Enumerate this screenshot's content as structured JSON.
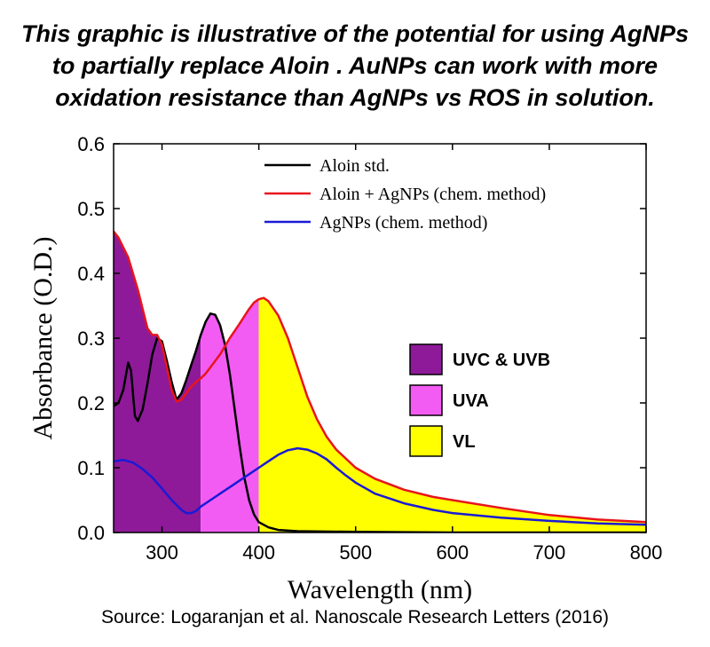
{
  "header": {
    "lines": [
      "This graphic is illustrative of the potential for using  AgNPs",
      "to partially replace Aloin . AuNPs can work with more",
      "oxidation resistance than AgNPs vs ROS in solution."
    ]
  },
  "source": "Source: Logaranjan et al. Nanoscale Research Letters (2016)",
  "chart_data": {
    "type": "line",
    "xlabel": "Wavelength (nm)",
    "ylabel": "Absorbance (O.D.)",
    "xlim": [
      250,
      800
    ],
    "ylim": [
      0.0,
      0.6
    ],
    "xticks": [
      300,
      400,
      500,
      600,
      700,
      800
    ],
    "yticks": [
      0.0,
      0.1,
      0.2,
      0.3,
      0.4,
      0.5,
      0.6
    ],
    "ytick_labels": [
      "0.0",
      "0.1",
      "0.2",
      "0.3",
      "0.4",
      "0.5",
      "0.6"
    ],
    "grid": false,
    "legend_position": "top-right",
    "series": [
      {
        "name": "Aloin std.",
        "color": "#000000",
        "points": [
          [
            250,
            0.195
          ],
          [
            255,
            0.2
          ],
          [
            260,
            0.22
          ],
          [
            265,
            0.262
          ],
          [
            268,
            0.25
          ],
          [
            272,
            0.18
          ],
          [
            275,
            0.172
          ],
          [
            280,
            0.19
          ],
          [
            285,
            0.23
          ],
          [
            290,
            0.275
          ],
          [
            295,
            0.3
          ],
          [
            300,
            0.295
          ],
          [
            305,
            0.265
          ],
          [
            310,
            0.232
          ],
          [
            315,
            0.205
          ],
          [
            320,
            0.215
          ],
          [
            325,
            0.235
          ],
          [
            330,
            0.258
          ],
          [
            335,
            0.28
          ],
          [
            340,
            0.305
          ],
          [
            345,
            0.325
          ],
          [
            350,
            0.338
          ],
          [
            355,
            0.336
          ],
          [
            360,
            0.32
          ],
          [
            365,
            0.29
          ],
          [
            370,
            0.245
          ],
          [
            375,
            0.19
          ],
          [
            380,
            0.135
          ],
          [
            385,
            0.085
          ],
          [
            390,
            0.05
          ],
          [
            395,
            0.028
          ],
          [
            400,
            0.016
          ],
          [
            410,
            0.008
          ],
          [
            420,
            0.004
          ],
          [
            440,
            0.002
          ],
          [
            500,
            0.001
          ],
          [
            600,
            0.0
          ],
          [
            700,
            0.0
          ],
          [
            800,
            0.0
          ]
        ]
      },
      {
        "name": "Aloin + AgNPs (chem. method)",
        "color": "#e8141c",
        "points": [
          [
            250,
            0.465
          ],
          [
            255,
            0.455
          ],
          [
            260,
            0.44
          ],
          [
            265,
            0.425
          ],
          [
            270,
            0.4
          ],
          [
            275,
            0.375
          ],
          [
            280,
            0.345
          ],
          [
            285,
            0.315
          ],
          [
            290,
            0.305
          ],
          [
            295,
            0.305
          ],
          [
            300,
            0.29
          ],
          [
            305,
            0.255
          ],
          [
            310,
            0.22
          ],
          [
            315,
            0.202
          ],
          [
            320,
            0.205
          ],
          [
            325,
            0.215
          ],
          [
            330,
            0.225
          ],
          [
            335,
            0.232
          ],
          [
            340,
            0.238
          ],
          [
            345,
            0.245
          ],
          [
            350,
            0.255
          ],
          [
            360,
            0.275
          ],
          [
            370,
            0.3
          ],
          [
            380,
            0.322
          ],
          [
            390,
            0.345
          ],
          [
            395,
            0.355
          ],
          [
            400,
            0.36
          ],
          [
            405,
            0.362
          ],
          [
            410,
            0.357
          ],
          [
            420,
            0.335
          ],
          [
            430,
            0.3
          ],
          [
            440,
            0.255
          ],
          [
            450,
            0.21
          ],
          [
            460,
            0.175
          ],
          [
            470,
            0.148
          ],
          [
            480,
            0.128
          ],
          [
            500,
            0.1
          ],
          [
            520,
            0.083
          ],
          [
            550,
            0.066
          ],
          [
            580,
            0.055
          ],
          [
            600,
            0.05
          ],
          [
            650,
            0.038
          ],
          [
            700,
            0.027
          ],
          [
            750,
            0.02
          ],
          [
            800,
            0.016
          ]
        ]
      },
      {
        "name": "AgNPs (chem. method)",
        "color": "#1a1ad6",
        "points": [
          [
            250,
            0.11
          ],
          [
            260,
            0.112
          ],
          [
            270,
            0.108
          ],
          [
            280,
            0.098
          ],
          [
            290,
            0.085
          ],
          [
            300,
            0.068
          ],
          [
            310,
            0.05
          ],
          [
            320,
            0.035
          ],
          [
            325,
            0.03
          ],
          [
            330,
            0.03
          ],
          [
            335,
            0.033
          ],
          [
            340,
            0.04
          ],
          [
            350,
            0.05
          ],
          [
            360,
            0.06
          ],
          [
            370,
            0.07
          ],
          [
            380,
            0.08
          ],
          [
            390,
            0.09
          ],
          [
            400,
            0.1
          ],
          [
            410,
            0.11
          ],
          [
            420,
            0.12
          ],
          [
            430,
            0.127
          ],
          [
            440,
            0.13
          ],
          [
            450,
            0.128
          ],
          [
            460,
            0.122
          ],
          [
            470,
            0.113
          ],
          [
            480,
            0.1
          ],
          [
            490,
            0.088
          ],
          [
            500,
            0.077
          ],
          [
            520,
            0.06
          ],
          [
            550,
            0.045
          ],
          [
            580,
            0.035
          ],
          [
            600,
            0.03
          ],
          [
            650,
            0.023
          ],
          [
            700,
            0.018
          ],
          [
            750,
            0.014
          ],
          [
            800,
            0.012
          ]
        ]
      }
    ],
    "regions": [
      {
        "label": "UVC & UVB",
        "x_range": [
          250,
          340
        ],
        "color": "#8e1a99"
      },
      {
        "label": "UVA",
        "x_range": [
          340,
          400
        ],
        "color": "#f25cf2"
      },
      {
        "label": "VL",
        "x_range": [
          400,
          800
        ],
        "color": "#ffff00"
      }
    ]
  }
}
